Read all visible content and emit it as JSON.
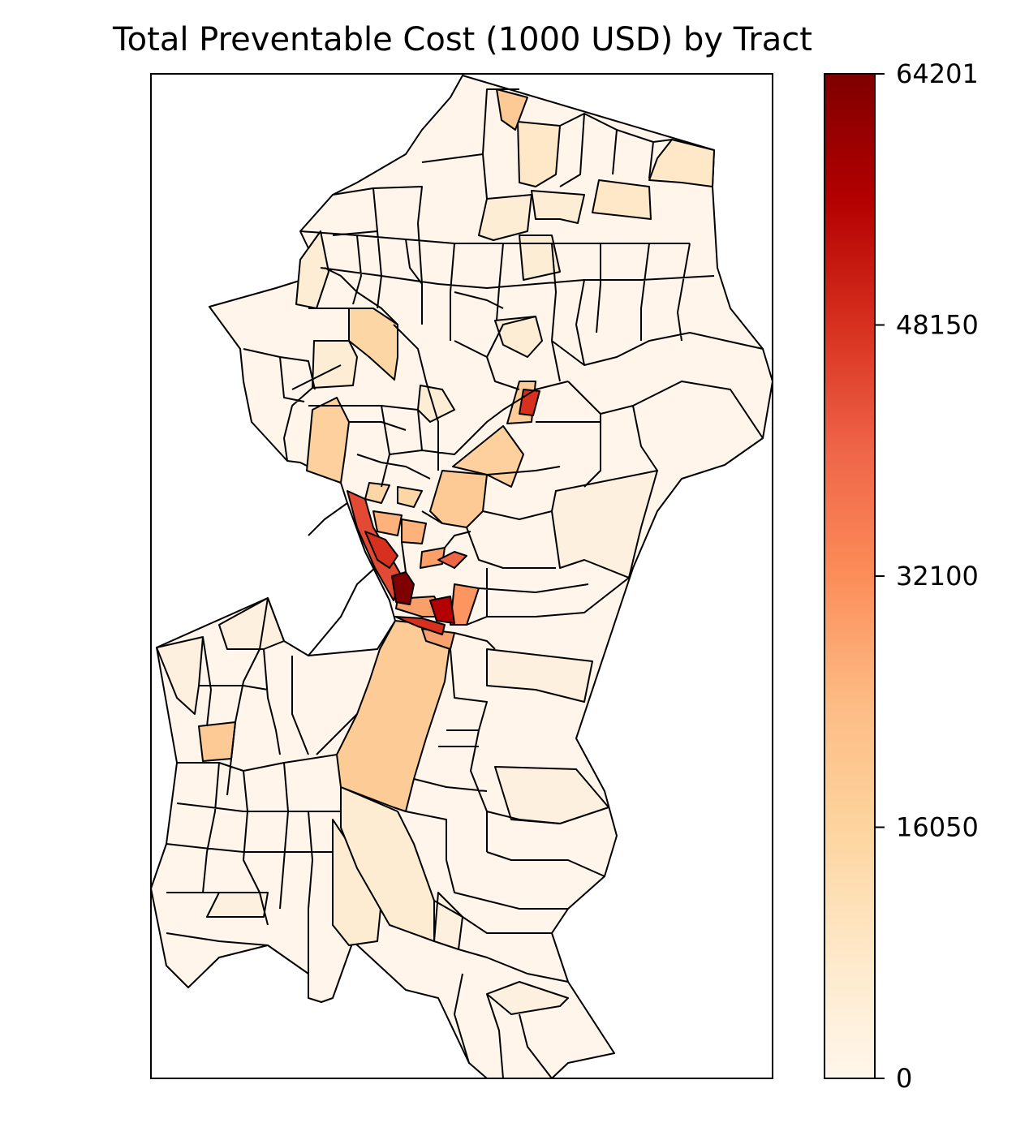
{
  "title": "Total Preventable Cost (1000 USD) by Tract",
  "colorbar": {
    "min": 0,
    "max": 64201,
    "ticks": [
      {
        "value": 0,
        "label": "0"
      },
      {
        "value": 16050,
        "label": "16050"
      },
      {
        "value": 32100,
        "label": "32100"
      },
      {
        "value": 48150,
        "label": "48150"
      },
      {
        "value": 64201,
        "label": "64201"
      }
    ],
    "colormap": "OrRd",
    "stops": [
      {
        "t": 0.0,
        "color": "#fff7ec"
      },
      {
        "t": 0.125,
        "color": "#fee8c8"
      },
      {
        "t": 0.25,
        "color": "#fdd49e"
      },
      {
        "t": 0.375,
        "color": "#fdbb84"
      },
      {
        "t": 0.5,
        "color": "#fc8d59"
      },
      {
        "t": 0.625,
        "color": "#ef6548"
      },
      {
        "t": 0.75,
        "color": "#d7301f"
      },
      {
        "t": 0.875,
        "color": "#b30000"
      },
      {
        "t": 1.0,
        "color": "#7f0000"
      }
    ]
  },
  "map": {
    "type": "choropleth",
    "edge_color": "#000000",
    "tract_values": [
      2000,
      9000,
      15000,
      22000,
      30000,
      40000,
      52000,
      57000,
      64201
    ]
  }
}
